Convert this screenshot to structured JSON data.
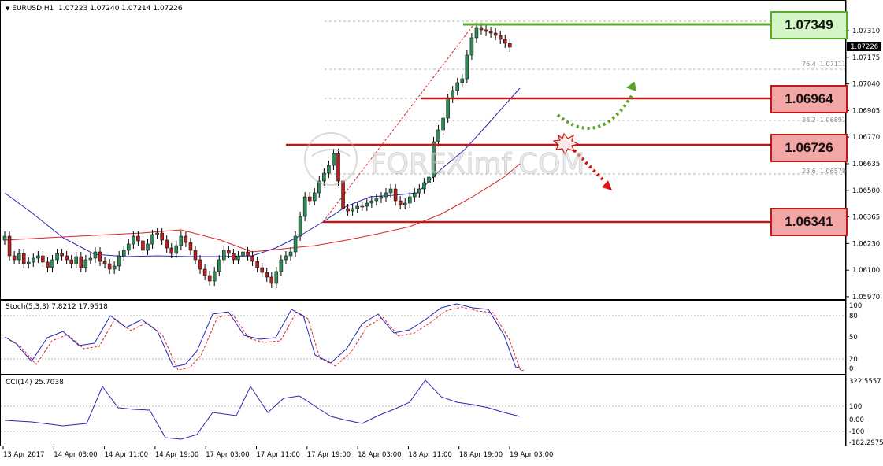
{
  "header": {
    "marker": "▼",
    "symbol": "EURUSD,H1",
    "ohlc": "1.07223 1.07240 1.07214 1.07226"
  },
  "colors": {
    "bull": "#2e8b57",
    "bear": "#b22222",
    "ma_fast": "#2828b4",
    "ma_slow": "#dd2222",
    "resistance": "#5aaa2a",
    "support": "#c01818",
    "green_box": "#d4f5c6",
    "red_box": "#f2a6a6"
  },
  "price_axis": {
    "ticks": [
      "1.07310",
      "1.07175",
      "1.07040",
      "1.06905",
      "1.06770",
      "1.06635",
      "1.06500",
      "1.06365",
      "1.06230",
      "1.06100",
      "1.05970"
    ],
    "current": "1.07226"
  },
  "levels": [
    {
      "label": "1.07349",
      "kind": "resistance"
    },
    {
      "label": "1.06964",
      "kind": "support"
    },
    {
      "label": "1.06726",
      "kind": "support"
    },
    {
      "label": "1.06341",
      "kind": "support"
    }
  ],
  "fibonacci": {
    "f764": "76.4",
    "f764_price": "1.07111",
    "f382": "38.2",
    "f382_price": "1.06891",
    "f236": "23.6",
    "f236_price": "1.06579"
  },
  "watermark": "FOREXimf.COM",
  "stoch": {
    "title": "Stoch(5,3,3)",
    "main": "7.8212",
    "signal": "17.9518",
    "ticks": [
      "100",
      "80",
      "50",
      "20",
      "0"
    ]
  },
  "cci": {
    "title": "CCI(14)",
    "value": "25.7038",
    "ticks": [
      "322.5557",
      "100",
      "0.00",
      "-100",
      "-182.2975"
    ]
  },
  "time_axis": [
    "13 Apr 2017",
    "14 Apr 03:00",
    "14 Apr 11:00",
    "14 Apr 19:00",
    "17 Apr 03:00",
    "17 Apr 11:00",
    "17 Apr 19:00",
    "18 Apr 03:00",
    "18 Apr 11:00",
    "18 Apr 19:00",
    "19 Apr 03:00"
  ]
}
